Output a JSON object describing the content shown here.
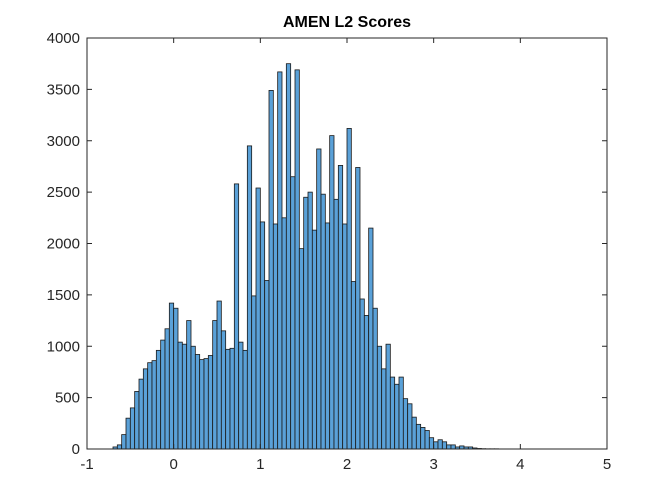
{
  "chart_data": {
    "type": "bar",
    "title": "AMEN L2 Scores",
    "xlabel": "",
    "ylabel": "",
    "xlim": [
      -1,
      5
    ],
    "ylim": [
      0,
      4000
    ],
    "xticks": [
      "-1",
      "0",
      "1",
      "2",
      "3",
      "4",
      "5"
    ],
    "yticks": [
      "0",
      "500",
      "1000",
      "1500",
      "2000",
      "2500",
      "3000",
      "3500",
      "4000"
    ],
    "bin_width": 0.05,
    "bins_start": -0.7,
    "grid": false,
    "box": true,
    "bar_color": "#5aa1d8",
    "edge_color": "#1a1a1a",
    "values": [
      20,
      40,
      140,
      300,
      400,
      560,
      680,
      780,
      840,
      860,
      960,
      1060,
      1170,
      1420,
      1370,
      1040,
      1020,
      1250,
      1000,
      920,
      870,
      880,
      910,
      1250,
      1440,
      1150,
      970,
      980,
      2580,
      1040,
      960,
      2950,
      1490,
      2540,
      2210,
      1640,
      3490,
      2190,
      3670,
      2250,
      3750,
      2650,
      3690,
      1950,
      2450,
      2500,
      2130,
      2920,
      2480,
      2200,
      3050,
      2430,
      2760,
      2190,
      3120,
      1630,
      2740,
      1460,
      1300,
      2150,
      1370,
      1000,
      780,
      1020,
      700,
      630,
      700,
      490,
      440,
      310,
      240,
      210,
      180,
      110,
      70,
      90,
      70,
      40,
      40,
      20,
      30,
      20,
      20,
      10,
      5,
      3,
      2,
      2,
      2,
      0,
      0,
      1
    ]
  }
}
